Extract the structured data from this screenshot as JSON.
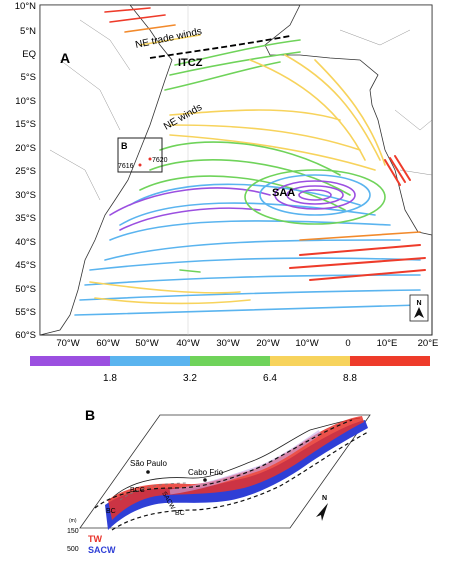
{
  "panel_a": {
    "label": "A",
    "lat_labels": [
      "10°N",
      "5°N",
      "EQ",
      "5°S",
      "10°S",
      "15°S",
      "20°S",
      "25°S",
      "30°S",
      "35°S",
      "40°S",
      "45°S",
      "50°S",
      "55°S",
      "60°S"
    ],
    "lon_labels": [
      "70°W",
      "60°W",
      "50°W",
      "40°W",
      "30°W",
      "20°W",
      "10°W",
      "0",
      "10°E",
      "20°E"
    ],
    "annotations": {
      "ne_trade_winds": "NE trade winds",
      "itcz": "ITCZ",
      "ne_winds": "NE winds",
      "saa": "SAA",
      "inset_box_label": "B",
      "station_1": "7620",
      "station_2": "7616"
    },
    "north_arrow": "N"
  },
  "colorbar": {
    "tick_labels": [
      "1.8",
      "3.2",
      "6.4",
      "8.8"
    ],
    "colors": [
      "#9b4fe0",
      "#5ab4ef",
      "#6fd35a",
      "#f7d35c",
      "#ee3b2a"
    ]
  },
  "panel_b": {
    "label": "B",
    "place_labels": {
      "sao_paulo": "São Paulo",
      "cabo_frio": "Cabo Frio",
      "bcc": "BCC",
      "sacw_stream": "SACW",
      "bc_1": "BC",
      "bc_2": "BC"
    },
    "depth_labels": [
      "(m)",
      "150",
      "500"
    ],
    "legend": {
      "tw": {
        "label": "TW",
        "color": "#e8322a"
      },
      "sacw": {
        "label": "SACW",
        "color": "#2f3fd6"
      }
    },
    "north_arrow": "N"
  }
}
